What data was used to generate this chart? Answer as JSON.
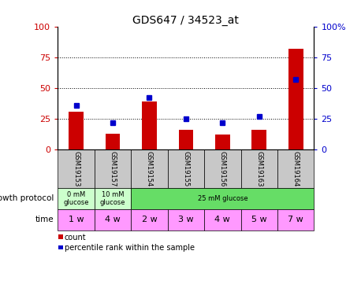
{
  "title": "GDS647 / 34523_at",
  "samples": [
    "GSM19153",
    "GSM19157",
    "GSM19154",
    "GSM19155",
    "GSM19156",
    "GSM19163",
    "GSM19164"
  ],
  "count_values": [
    31,
    13,
    39,
    16,
    12,
    16,
    82
  ],
  "percentile_values": [
    36,
    22,
    42,
    25,
    22,
    27,
    57
  ],
  "left_ylim": [
    0,
    100
  ],
  "right_ylim": [
    0,
    100
  ],
  "left_yticks": [
    0,
    25,
    50,
    75,
    100
  ],
  "right_yticks": [
    0,
    25,
    50,
    75,
    100
  ],
  "left_yticklabels": [
    "0",
    "25",
    "50",
    "75",
    "100"
  ],
  "right_yticklabels": [
    "0",
    "25",
    "50",
    "75",
    "100%"
  ],
  "bar_color": "#cc0000",
  "marker_color": "#0000cc",
  "dotted_lines": [
    25,
    50,
    75
  ],
  "protocol_data": [
    {
      "span": [
        -0.5,
        0.5
      ],
      "color": "#ccffcc",
      "label": "0 mM\nglucose"
    },
    {
      "span": [
        0.5,
        1.5
      ],
      "color": "#ccffcc",
      "label": "10 mM\nglucose"
    },
    {
      "span": [
        1.5,
        6.5
      ],
      "color": "#66dd66",
      "label": "25 mM glucose"
    }
  ],
  "time_labels": [
    "1 w",
    "4 w",
    "2 w",
    "3 w",
    "4 w",
    "5 w",
    "7 w"
  ],
  "time_colors": [
    "#ff99ff",
    "#ff99ff",
    "#ff99ff",
    "#ff99ff",
    "#ff99ff",
    "#ff99ff",
    "#ff99ff"
  ],
  "sample_bg_color": "#c8c8c8",
  "legend_items": [
    {
      "label": "count",
      "color": "#cc0000"
    },
    {
      "label": "percentile rank within the sample",
      "color": "#0000cc"
    }
  ]
}
